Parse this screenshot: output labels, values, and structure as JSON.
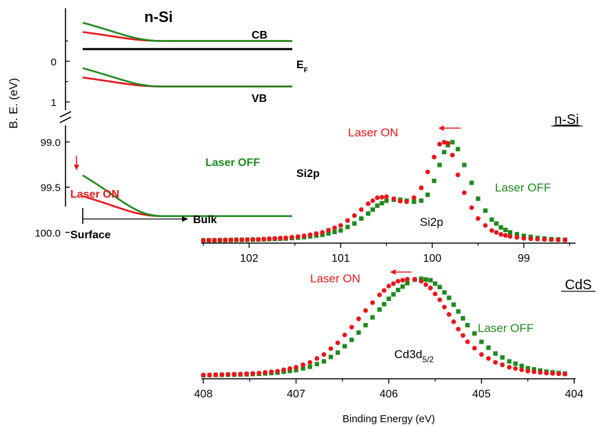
{
  "colors": {
    "laser_on": "#e8161b",
    "laser_off": "#1e8a1e",
    "fermi": "#000000",
    "axis": "#000000"
  },
  "chart_data": [
    {
      "id": "band_diagram",
      "type": "line",
      "title": "n-Si",
      "ylabel": "B. E. (eV)",
      "y_ticks_upper": [
        "0",
        "1"
      ],
      "y_ticks_lower": [
        "99.0",
        "99.5",
        "100.0"
      ],
      "x_arrow_label": "Bulk",
      "x_origin_label": "Surface",
      "band_labels": {
        "cb": "CB",
        "ef_main": "E",
        "ef_sub": "F",
        "vb": "VB",
        "si2p": "Si2p"
      },
      "legend_off": "Laser OFF",
      "legend_on": "Laser ON",
      "levels_ev": {
        "cb_bulk": -0.5,
        "cb_surface_off": -0.95,
        "cb_surface_on": -0.72,
        "ef": -0.3,
        "vb_bulk": 0.62,
        "vb_surface_off": 0.17,
        "vb_surface_on": 0.4,
        "si2p_bulk": 99.82,
        "si2p_surface_off": 99.37,
        "si2p_surface_on": 99.6
      }
    },
    {
      "id": "si2p_spectrum",
      "type": "scatter",
      "sample_label": "n-Si",
      "peak_label": "Si2p",
      "x_ticks": [
        "102",
        "101",
        "100",
        "99"
      ],
      "xlim": [
        102.5,
        98.45
      ],
      "ylim": [
        0,
        1
      ],
      "series": [
        {
          "name": "Laser ON",
          "marker": "circle",
          "x": [
            102.5,
            102.2,
            101.9,
            101.6,
            101.4,
            101.2,
            101.0,
            100.85,
            100.7,
            100.6,
            100.5,
            100.42,
            100.35,
            100.28,
            100.2,
            100.12,
            100.05,
            99.98,
            99.92,
            99.87,
            99.83,
            99.78,
            99.72,
            99.65,
            99.57,
            99.5,
            99.42,
            99.35,
            99.25,
            99.15,
            99.0,
            98.85,
            98.7,
            98.55
          ],
          "y": [
            0.0,
            0.005,
            0.01,
            0.025,
            0.045,
            0.08,
            0.15,
            0.25,
            0.37,
            0.43,
            0.44,
            0.42,
            0.395,
            0.39,
            0.43,
            0.53,
            0.69,
            0.84,
            0.97,
            0.99,
            0.98,
            0.86,
            0.66,
            0.48,
            0.33,
            0.22,
            0.15,
            0.1,
            0.06,
            0.04,
            0.02,
            0.012,
            0.006,
            0.003
          ]
        },
        {
          "name": "Laser OFF",
          "marker": "square",
          "x": [
            102.5,
            102.2,
            101.9,
            101.6,
            101.4,
            101.2,
            101.0,
            100.85,
            100.7,
            100.6,
            100.5,
            100.42,
            100.35,
            100.28,
            100.2,
            100.12,
            100.05,
            99.98,
            99.92,
            99.87,
            99.83,
            99.78,
            99.72,
            99.65,
            99.57,
            99.5,
            99.42,
            99.35,
            99.25,
            99.15,
            99.0,
            98.85,
            98.7,
            98.55
          ],
          "y": [
            0.0,
            0.003,
            0.008,
            0.018,
            0.032,
            0.055,
            0.1,
            0.17,
            0.27,
            0.35,
            0.4,
            0.41,
            0.41,
            0.4,
            0.39,
            0.4,
            0.46,
            0.6,
            0.76,
            0.89,
            0.96,
            0.99,
            0.92,
            0.76,
            0.58,
            0.42,
            0.3,
            0.21,
            0.13,
            0.08,
            0.045,
            0.025,
            0.012,
            0.006
          ]
        }
      ],
      "legend_on": "Laser ON",
      "legend_off": "Laser OFF"
    },
    {
      "id": "cd3d_spectrum",
      "type": "scatter",
      "sample_label": "CdS",
      "peak_label_main": "Cd3d",
      "peak_label_sub": "5/2",
      "xlabel": "Binding Energy (eV)",
      "x_ticks": [
        "408",
        "407",
        "406",
        "405",
        "404"
      ],
      "xlim": [
        408,
        404
      ],
      "ylim": [
        0,
        1
      ],
      "series": [
        {
          "name": "Laser ON",
          "marker": "circle",
          "x": [
            408.0,
            407.8,
            407.6,
            407.4,
            407.2,
            407.0,
            406.85,
            406.7,
            406.55,
            406.4,
            406.25,
            406.1,
            406.0,
            405.9,
            405.8,
            405.72,
            405.65,
            405.55,
            405.45,
            405.35,
            405.25,
            405.15,
            405.0,
            404.85,
            404.7,
            404.5,
            404.3,
            404.1
          ],
          "y": [
            0.01,
            0.015,
            0.02,
            0.03,
            0.05,
            0.09,
            0.14,
            0.22,
            0.34,
            0.5,
            0.67,
            0.83,
            0.92,
            0.97,
            0.99,
            0.99,
            0.97,
            0.9,
            0.78,
            0.63,
            0.48,
            0.35,
            0.22,
            0.14,
            0.09,
            0.05,
            0.03,
            0.02
          ]
        },
        {
          "name": "Laser OFF",
          "marker": "square",
          "x": [
            408.0,
            407.8,
            407.6,
            407.4,
            407.2,
            407.0,
            406.85,
            406.7,
            406.55,
            406.4,
            406.25,
            406.1,
            406.0,
            405.9,
            405.8,
            405.72,
            405.65,
            405.55,
            405.45,
            405.35,
            405.25,
            405.15,
            405.0,
            404.85,
            404.7,
            404.5,
            404.3,
            404.1
          ],
          "y": [
            0.008,
            0.012,
            0.015,
            0.022,
            0.035,
            0.06,
            0.095,
            0.15,
            0.24,
            0.37,
            0.52,
            0.68,
            0.79,
            0.88,
            0.95,
            0.985,
            0.995,
            0.98,
            0.91,
            0.8,
            0.66,
            0.52,
            0.35,
            0.23,
            0.15,
            0.08,
            0.045,
            0.025
          ]
        }
      ],
      "legend_on": "Laser ON",
      "legend_off": "Laser OFF"
    }
  ]
}
